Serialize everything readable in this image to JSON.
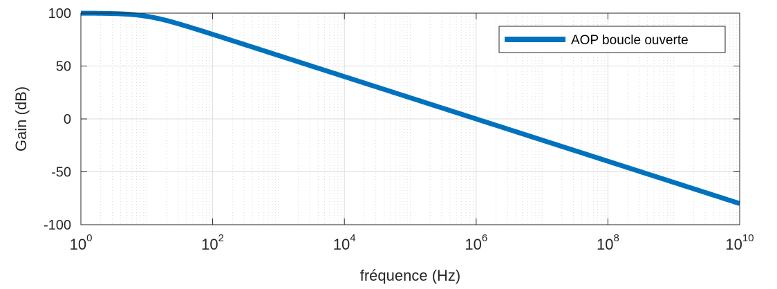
{
  "chart_data": {
    "type": "line",
    "title": "",
    "xlabel": "fréquence (Hz)",
    "ylabel": "Gain (dB)",
    "x_scale": "log",
    "xlim": [
      1,
      10000000000
    ],
    "ylim": [
      -100,
      100
    ],
    "x_ticks": [
      1,
      100,
      10000,
      1000000,
      100000000,
      10000000000
    ],
    "x_tick_labels": [
      {
        "base": "10",
        "exp": "0"
      },
      {
        "base": "10",
        "exp": "2"
      },
      {
        "base": "10",
        "exp": "4"
      },
      {
        "base": "10",
        "exp": "6"
      },
      {
        "base": "10",
        "exp": "8"
      },
      {
        "base": "10",
        "exp": "10"
      }
    ],
    "y_ticks": [
      100,
      50,
      0,
      -50,
      -100
    ],
    "y_tick_labels": [
      "100",
      "50",
      "0",
      "-50",
      "-100"
    ],
    "grid": true,
    "minor_grid": true,
    "legend_position": "top-right",
    "series": [
      {
        "name": "AOP boucle ouverte",
        "color": "#0072BD",
        "dc_gain_db": 100,
        "cutoff_hz": 10,
        "x": [
          1,
          2,
          5,
          10,
          20,
          50,
          100,
          1000,
          10000,
          100000,
          1000000,
          10000000,
          100000000,
          1000000000,
          10000000000
        ],
        "values": [
          99.96,
          99.83,
          99.03,
          96.99,
          93.01,
          85.85,
          80.0,
          60.0,
          40.0,
          20.0,
          0.0,
          -20.0,
          -40.0,
          -60.0,
          -80.0
        ]
      }
    ]
  }
}
